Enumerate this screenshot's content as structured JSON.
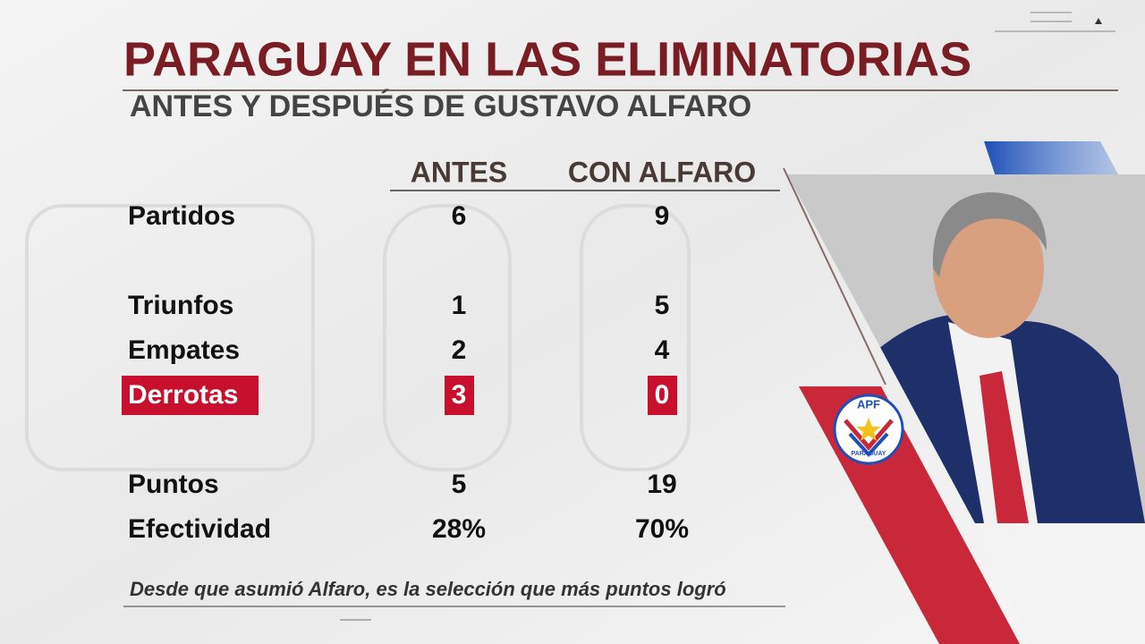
{
  "header": {
    "title": "PARAGUAY EN LAS ELIMINATORIAS",
    "subtitle": "ANTES Y DESPUÉS DE GUSTAVO ALFARO"
  },
  "table": {
    "columns": [
      "ANTES",
      "CON ALFARO"
    ],
    "rows": [
      [
        "Partidos",
        "6",
        "9"
      ],
      [
        "Triunfos",
        "1",
        "5"
      ],
      [
        "Empates",
        "2",
        "4"
      ],
      [
        "Derrotas",
        "3",
        "0"
      ],
      [
        "Puntos",
        "5",
        "19"
      ],
      [
        "Efectividad",
        "28%",
        "70%"
      ]
    ]
  },
  "footnote": "Desde que asumió Alfaro, es la selección que más puntos logró",
  "logo": {
    "top": "APF",
    "bottom": "PARAGUAY"
  }
}
